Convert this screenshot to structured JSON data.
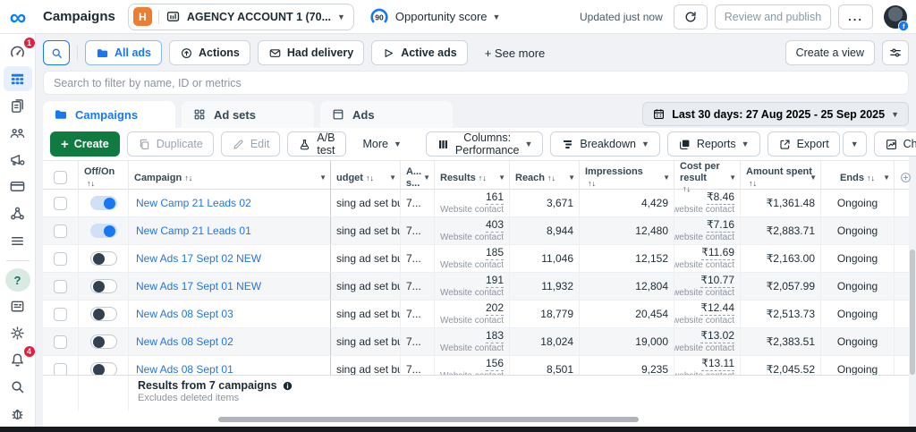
{
  "theme": {
    "accent_blue": "#1877f2",
    "link_blue": "#2374e1",
    "create_green": "#0f7b41",
    "badge_red": "#e41e3f",
    "business_orange": "#ec7e32",
    "page_bg": "#f0f2f5"
  },
  "topbar": {
    "page_title": "Campaigns",
    "business_badge": "H",
    "account_name": "AGENCY ACCOUNT 1 (70...",
    "opportunity_score_value": "90",
    "opportunity_score_label": "Opportunity score",
    "updated_text": "Updated just now",
    "review_publish_label": "Review and publish",
    "more_label": "..."
  },
  "sidebar": {
    "overview_badge": "1",
    "notifications_badge": "4",
    "help_glyph": "?"
  },
  "filters": {
    "all_ads": "All ads",
    "actions": "Actions",
    "had_delivery": "Had delivery",
    "active_ads": "Active ads",
    "see_more": "+  See more",
    "create_view": "Create a view"
  },
  "search": {
    "placeholder": "Search to filter by name, ID or metrics"
  },
  "tabs": {
    "campaigns": "Campaigns",
    "ad_sets": "Ad sets",
    "ads": "Ads"
  },
  "date_range": {
    "label": "Last 30 days: 27 Aug 2025 - 25 Sep 2025"
  },
  "toolbar": {
    "create": "Create",
    "duplicate": "Duplicate",
    "edit": "Edit",
    "ab_test": "A/B test",
    "more": "More",
    "columns": "Columns: Performance",
    "breakdown": "Breakdown",
    "reports": "Reports",
    "export": "Export",
    "charts": "Charts"
  },
  "table": {
    "headers": {
      "offon": "Off/On",
      "campaign": "Campaign",
      "budget": "udget",
      "attribution": "A...\ns...",
      "results": "Results",
      "reach": "Reach",
      "impressions": "Impressions",
      "cost_per_result": "Cost per result",
      "amount_spent": "Amount spent",
      "ends": "Ends"
    },
    "rows": [
      {
        "toggle_on": true,
        "name": "New Camp 21 Leads 02",
        "budget": "sing ad set bu...",
        "attribution": "7...",
        "results": "161",
        "results_sub": "Website contact",
        "reach": "3,671",
        "impressions": "4,429",
        "cost_per_result": "₹8.46",
        "cost_sub": "Per website contact",
        "amount_spent": "₹1,361.48",
        "ends": "Ongoing"
      },
      {
        "toggle_on": true,
        "name": "New Camp 21 Leads 01",
        "budget": "sing ad set bu...",
        "attribution": "7...",
        "results": "403",
        "results_sub": "Website contact",
        "reach": "8,944",
        "impressions": "12,480",
        "cost_per_result": "₹7.16",
        "cost_sub": "Per website contact",
        "amount_spent": "₹2,883.71",
        "ends": "Ongoing"
      },
      {
        "toggle_on": false,
        "name": "New Ads 17 Sept 02 NEW",
        "budget": "sing ad set bu...",
        "attribution": "7...",
        "results": "185",
        "results_sub": "Website contact",
        "reach": "11,046",
        "impressions": "12,152",
        "cost_per_result": "₹11.69",
        "cost_sub": "Per website contact",
        "amount_spent": "₹2,163.00",
        "ends": "Ongoing"
      },
      {
        "toggle_on": false,
        "name": "New Ads 17 Sept 01 NEW",
        "budget": "sing ad set bu...",
        "attribution": "7...",
        "results": "191",
        "results_sub": "Website contact",
        "reach": "11,932",
        "impressions": "12,804",
        "cost_per_result": "₹10.77",
        "cost_sub": "Per website contact",
        "amount_spent": "₹2,057.99",
        "ends": "Ongoing"
      },
      {
        "toggle_on": false,
        "name": "New Ads 08 Sept 03",
        "budget": "sing ad set bu...",
        "attribution": "7...",
        "results": "202",
        "results_sub": "Website contact",
        "reach": "18,779",
        "impressions": "20,454",
        "cost_per_result": "₹12.44",
        "cost_sub": "Per website contact",
        "amount_spent": "₹2,513.73",
        "ends": "Ongoing"
      },
      {
        "toggle_on": false,
        "name": "New Ads 08 Sept 02",
        "budget": "sing ad set bu...",
        "attribution": "7...",
        "results": "183",
        "results_sub": "Website contact",
        "reach": "18,024",
        "impressions": "19,000",
        "cost_per_result": "₹13.02",
        "cost_sub": "Per website contact",
        "amount_spent": "₹2,383.51",
        "ends": "Ongoing"
      },
      {
        "toggle_on": false,
        "name": "New Ads 08 Sept 01",
        "budget": "sing ad set bu...",
        "attribution": "7...",
        "results": "156",
        "results_sub": "Website contact",
        "reach": "8,501",
        "impressions": "9,235",
        "cost_per_result": "₹13.11",
        "cost_sub": "Per website contact",
        "amount_spent": "₹2,045.52",
        "ends": "Ongoing"
      }
    ],
    "footer": {
      "summary": "Results from 7 campaigns",
      "note": "Excludes deleted items"
    }
  }
}
